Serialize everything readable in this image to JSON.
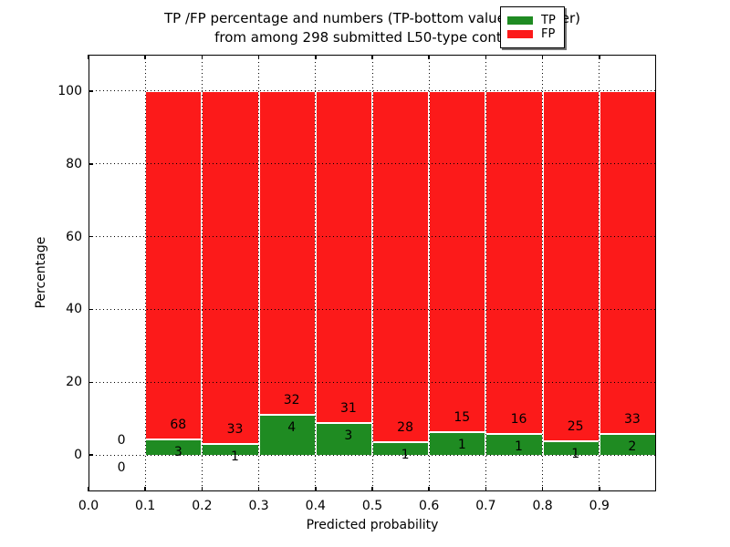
{
  "figure": {
    "title_line1": "TP /FP percentage and numbers (TP-bottom value, FP-upper)",
    "title_line2": "from among 298 submitted L50-type contacts"
  },
  "chart_data": {
    "type": "bar",
    "stacked": true,
    "title": "TP /FP percentage and numbers (TP-bottom value, FP-upper) from among 298 submitted L50-type contacts",
    "xlabel": "Predicted probability",
    "ylabel": "Percentage",
    "xlim": [
      0.0,
      1.0
    ],
    "ylim": [
      -10,
      110
    ],
    "xticks": [
      "0.0",
      "0.1",
      "0.2",
      "0.3",
      "0.4",
      "0.5",
      "0.6",
      "0.7",
      "0.8",
      "0.9"
    ],
    "yticks": [
      "0",
      "20",
      "40",
      "60",
      "80",
      "100"
    ],
    "grid": true,
    "grid_style": "dotted",
    "legend_position": "upper right",
    "bar_edge_color": "#ffffff",
    "series": [
      {
        "name": "TP",
        "color": "#1f8b22"
      },
      {
        "name": "FP",
        "color": "#fc1a1a"
      }
    ],
    "bins": [
      {
        "range": [
          0.0,
          0.1
        ],
        "tp": 0,
        "fp": 0
      },
      {
        "range": [
          0.1,
          0.2
        ],
        "tp": 3,
        "fp": 68
      },
      {
        "range": [
          0.2,
          0.3
        ],
        "tp": 1,
        "fp": 33
      },
      {
        "range": [
          0.3,
          0.4
        ],
        "tp": 4,
        "fp": 32
      },
      {
        "range": [
          0.4,
          0.5
        ],
        "tp": 3,
        "fp": 31
      },
      {
        "range": [
          0.5,
          0.6
        ],
        "tp": 1,
        "fp": 28
      },
      {
        "range": [
          0.6,
          0.7
        ],
        "tp": 1,
        "fp": 15
      },
      {
        "range": [
          0.7,
          0.8
        ],
        "tp": 1,
        "fp": 16
      },
      {
        "range": [
          0.8,
          0.9
        ],
        "tp": 1,
        "fp": 25
      },
      {
        "range": [
          0.9,
          1.0
        ],
        "tp": 2,
        "fp": 33
      }
    ],
    "value_semantics": "green bar height = tp/(tp+fp)*100 percent; red fills to 100 percent; labels show raw counts (TP bottom, FP upper)"
  }
}
